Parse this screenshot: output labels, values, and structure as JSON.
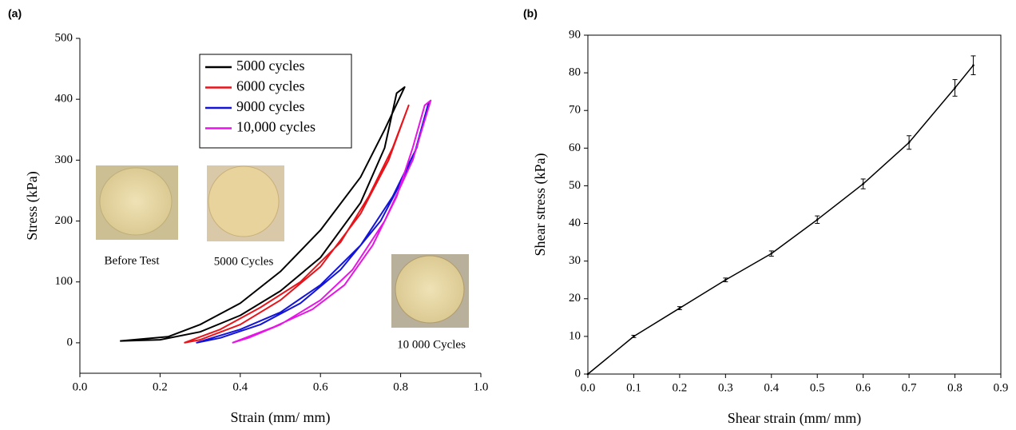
{
  "chart_data": [
    {
      "type": "line",
      "panel_label": "(a)",
      "x_label": "Strain (mm/ mm)",
      "y_label": "Stress (kPa)",
      "xlim": [
        0,
        1
      ],
      "xticks": [
        {
          "value": 0,
          "label": "0.0"
        },
        0.2,
        0.4,
        0.6,
        0.8,
        {
          "value": 1,
          "label": "1.0"
        }
      ],
      "ylim": [
        -50,
        500
      ],
      "yticks": [
        0,
        100,
        200,
        300,
        400,
        500
      ],
      "legend": "top",
      "series": [
        {
          "name": "5000 cycles",
          "color": "#000000",
          "x": [
            0.1,
            0.2,
            0.3,
            0.4,
            0.5,
            0.6,
            0.7,
            0.76,
            0.79,
            0.81,
            0.76,
            0.7,
            0.6,
            0.5,
            0.4,
            0.3,
            0.22,
            0.1
          ],
          "values": [
            3,
            5,
            18,
            45,
            85,
            140,
            230,
            320,
            410,
            420,
            350,
            272,
            185,
            117,
            65,
            30,
            10,
            3
          ]
        },
        {
          "name": "6000 cycles",
          "color": "#e8141b",
          "x": [
            0.26,
            0.35,
            0.45,
            0.55,
            0.65,
            0.72,
            0.78,
            0.82,
            0.77,
            0.7,
            0.6,
            0.5,
            0.4,
            0.3,
            0.26
          ],
          "values": [
            0,
            22,
            58,
            100,
            165,
            240,
            320,
            390,
            300,
            212,
            125,
            70,
            30,
            5,
            0
          ]
        },
        {
          "name": "9000 cycles",
          "color": "#1414d8",
          "x": [
            0.29,
            0.4,
            0.5,
            0.6,
            0.7,
            0.78,
            0.84,
            0.87,
            0.83,
            0.75,
            0.65,
            0.55,
            0.45,
            0.35,
            0.29
          ],
          "values": [
            0,
            22,
            50,
            95,
            160,
            240,
            320,
            395,
            300,
            200,
            120,
            65,
            30,
            8,
            0
          ]
        },
        {
          "name": "10,000 cycles",
          "color": "#e614e6",
          "x": [
            0.38,
            0.48,
            0.58,
            0.66,
            0.73,
            0.79,
            0.83,
            0.86,
            0.875,
            0.83,
            0.76,
            0.68,
            0.6,
            0.5,
            0.42,
            0.38
          ],
          "values": [
            0,
            25,
            55,
            95,
            160,
            240,
            320,
            390,
            398,
            300,
            200,
            120,
            70,
            30,
            8,
            0
          ]
        }
      ],
      "annotations": [
        "Before Test",
        "5000 Cycles",
        "10 000 Cycles"
      ]
    },
    {
      "type": "line",
      "panel_label": "(b)",
      "x_label": "Shear strain (mm/ mm)",
      "y_label": "Shear stress (kPa)",
      "xlim": [
        0,
        0.9
      ],
      "xticks": [
        {
          "value": 0,
          "label": "0.0"
        },
        0.1,
        0.2,
        0.3,
        0.4,
        0.5,
        0.6,
        0.7,
        0.8,
        0.9
      ],
      "ylim": [
        0,
        90
      ],
      "yticks": [
        0,
        10,
        20,
        30,
        40,
        50,
        60,
        70,
        80,
        90
      ],
      "series": [
        {
          "color": "#000000",
          "x": [
            0,
            0.1,
            0.2,
            0.3,
            0.4,
            0.5,
            0.6,
            0.7,
            0.8,
            0.84
          ],
          "values": [
            0,
            10,
            17.5,
            25,
            32,
            41,
            50.5,
            61.5,
            76,
            82
          ],
          "error": [
            0,
            0.3,
            0.4,
            0.5,
            0.7,
            1,
            1.3,
            1.8,
            2.2,
            2.5
          ]
        }
      ]
    }
  ]
}
